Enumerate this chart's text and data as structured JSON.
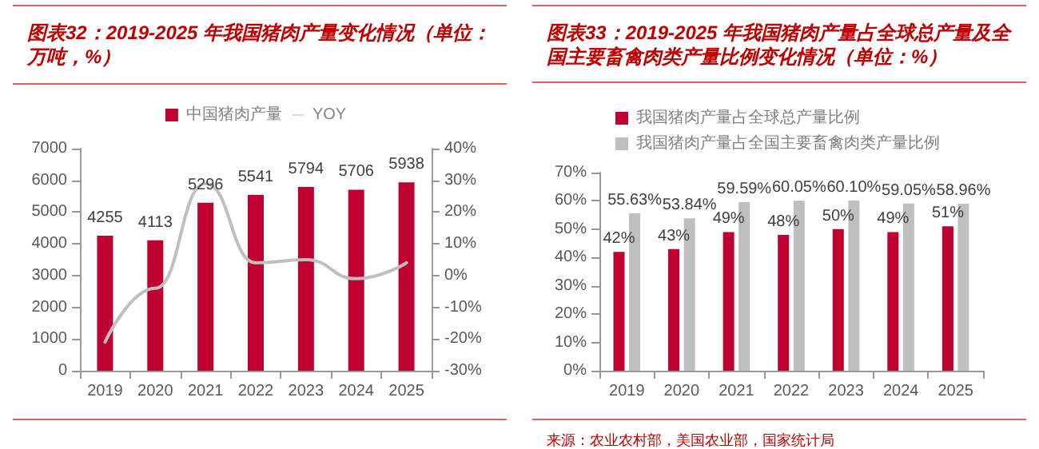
{
  "chart_data": [
    {
      "type": "bar",
      "title": "图表32：2019-2025 年我国猪肉产量变化情况（单位：万吨，%）",
      "categories": [
        "2019",
        "2020",
        "2021",
        "2022",
        "2023",
        "2024",
        "2025"
      ],
      "series": [
        {
          "name": "中国猪肉产量",
          "type": "bar",
          "color": "#c00030",
          "values": [
            4255,
            4113,
            5296,
            5541,
            5794,
            5706,
            5938
          ],
          "value_labels": [
            "4255",
            "4113",
            "5296",
            "5541",
            "5794",
            "5706",
            "5938"
          ]
        },
        {
          "name": "YOY",
          "type": "line",
          "axis": "y2",
          "color": "#bfbfbf",
          "values": [
            -21,
            -4,
            29,
            4,
            5,
            -1,
            4
          ]
        }
      ],
      "ylim": [
        0,
        7000
      ],
      "yticks": [
        0,
        1000,
        2000,
        3000,
        4000,
        5000,
        6000,
        7000
      ],
      "y2lim": [
        -30,
        40
      ],
      "y2ticks": [
        {
          "value": -30,
          "label": "-30%"
        },
        {
          "value": -20,
          "label": "-20%"
        },
        {
          "value": -10,
          "label": "-10%"
        },
        {
          "value": 0,
          "label": "0%"
        },
        {
          "value": 10,
          "label": "10%"
        },
        {
          "value": 20,
          "label": "20%"
        },
        {
          "value": 30,
          "label": "30%"
        },
        {
          "value": 40,
          "label": "40%"
        }
      ],
      "grid": false,
      "legend": "top",
      "marker": "none",
      "line_style": "solid"
    },
    {
      "type": "bar",
      "title": "图表33：2019-2025 年我国猪肉产量占全球总产量及全国主要畜禽肉类产量比例变化情况（单位：%）",
      "categories": [
        "2019",
        "2020",
        "2021",
        "2022",
        "2023",
        "2024",
        "2025"
      ],
      "series": [
        {
          "name": "我国猪肉产量占全球总产量比例",
          "color": "#c00030",
          "values": [
            42,
            43,
            49,
            48,
            50,
            49,
            51
          ],
          "value_labels": [
            "42%",
            "43%",
            "49%",
            "48%",
            "50%",
            "49%",
            "51%"
          ]
        },
        {
          "name": "我国猪肉产量占全国主要畜禽肉类产量比例",
          "color": "#bfbfbf",
          "values": [
            55.63,
            53.84,
            59.59,
            60.05,
            60.1,
            59.05,
            58.96
          ],
          "value_labels": [
            "55.63%",
            "53.84%",
            "59.59%",
            "60.05%",
            "60.10%",
            "59.05%",
            "58.96%"
          ]
        }
      ],
      "ylim": [
        0,
        70
      ],
      "yticks": [
        {
          "value": 0,
          "label": "0%"
        },
        {
          "value": 10,
          "label": "10%"
        },
        {
          "value": 20,
          "label": "20%"
        },
        {
          "value": 30,
          "label": "30%"
        },
        {
          "value": 40,
          "label": "40%"
        },
        {
          "value": 50,
          "label": "50%"
        },
        {
          "value": 60,
          "label": "60%"
        },
        {
          "value": 70,
          "label": "70%"
        }
      ],
      "grid": false,
      "legend": "top left",
      "annotations": [
        "来源：农业农村部，美国农业部，国家统计局"
      ]
    }
  ]
}
